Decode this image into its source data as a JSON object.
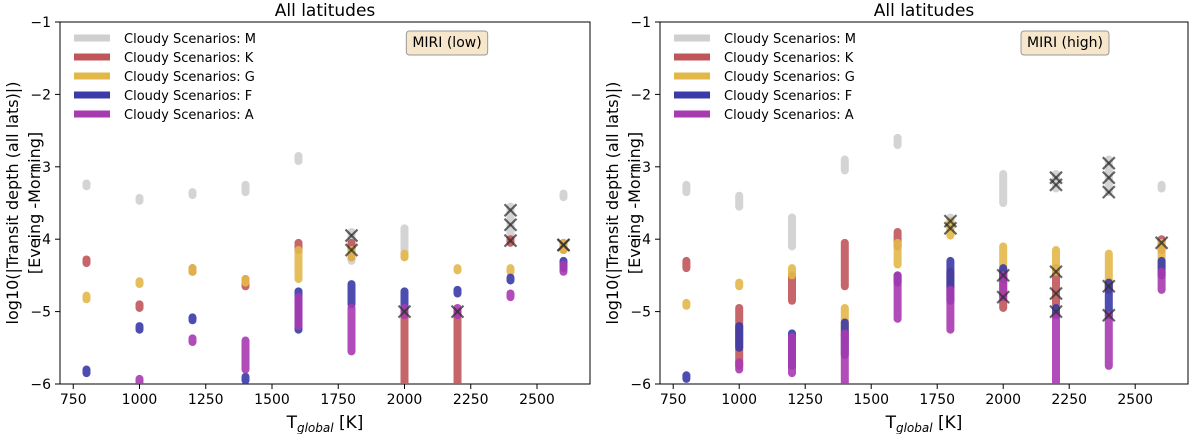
{
  "chart_data": [
    {
      "type": "scatter",
      "title": "All latitudes",
      "xlabel_main": "T",
      "xlabel_sub": "global",
      "xlabel_unit": " [K]",
      "ylabel_line1": "log10(|Transit depth (all lats)|)",
      "ylabel_line2": "[Eveing -Morning]",
      "xlim": [
        700,
        2700
      ],
      "ylim": [
        -6,
        -1
      ],
      "xticks": [
        750,
        1000,
        1250,
        1500,
        1750,
        2000,
        2250,
        2500
      ],
      "yticks": [
        -6,
        -5,
        -4,
        -3,
        -2,
        -1
      ],
      "annotation": "MIRI (low)",
      "legend": [
        "Cloudy Scenarios: M",
        "Cloudy Scenarios: K",
        "Cloudy Scenarios: G",
        "Cloudy Scenarios: F",
        "Cloudy Scenarios: A"
      ],
      "legend_colors": [
        "#cfcfcf",
        "#c0555a",
        "#e3b84a",
        "#3a3aa8",
        "#a83ab0"
      ],
      "series": [
        {
          "name": "M",
          "color": "#cfcfcf",
          "ranges": [
            [
              800,
              -3.27,
              -3.23
            ],
            [
              1000,
              -3.47,
              -3.43
            ],
            [
              1200,
              -3.39,
              -3.35
            ],
            [
              1400,
              -3.35,
              -3.25
            ],
            [
              1600,
              -2.92,
              -2.85
            ],
            [
              1800,
              -4.3,
              -3.9
            ],
            [
              2000,
              -4.25,
              -3.85
            ],
            [
              2400,
              -4.0,
              -3.55
            ],
            [
              2600,
              -3.42,
              -3.37
            ]
          ],
          "crosses": [
            [
              1800,
              -3.95
            ],
            [
              1800,
              -4.15
            ],
            [
              2400,
              -3.6
            ],
            [
              2400,
              -3.8
            ],
            [
              2600,
              -4.08
            ]
          ]
        },
        {
          "name": "K",
          "color": "#c0555a",
          "ranges": [
            [
              800,
              -4.33,
              -4.28
            ],
            [
              1000,
              -4.95,
              -4.9
            ],
            [
              1200,
              -4.45,
              -4.4
            ],
            [
              1400,
              -4.65,
              -4.55
            ],
            [
              1600,
              -4.15,
              -4.05
            ],
            [
              1800,
              -4.25,
              -4.05
            ],
            [
              2000,
              -6.0,
              -5.0
            ],
            [
              2200,
              -6.0,
              -5.0
            ],
            [
              2400,
              -4.05,
              -4.0
            ],
            [
              2600,
              -4.15,
              -4.05
            ]
          ],
          "crosses": [
            [
              2000,
              -5.0
            ],
            [
              2200,
              -5.0
            ],
            [
              2400,
              -4.02
            ],
            [
              2600,
              -4.08
            ]
          ]
        },
        {
          "name": "G",
          "color": "#e3b84a",
          "ranges": [
            [
              800,
              -4.83,
              -4.78
            ],
            [
              1000,
              -4.62,
              -4.58
            ],
            [
              1200,
              -4.45,
              -4.4
            ],
            [
              1400,
              -4.6,
              -4.55
            ],
            [
              1600,
              -4.55,
              -4.15
            ],
            [
              1800,
              -4.25,
              -4.15
            ],
            [
              2000,
              -4.25,
              -4.2
            ],
            [
              2200,
              -4.43,
              -4.4
            ],
            [
              2400,
              -4.45,
              -4.4
            ],
            [
              2600,
              -4.15,
              -4.05
            ]
          ],
          "crosses": []
        },
        {
          "name": "F",
          "color": "#3a3aa8",
          "ranges": [
            [
              800,
              -5.85,
              -5.8
            ],
            [
              1000,
              -5.25,
              -5.2
            ],
            [
              1200,
              -5.12,
              -5.08
            ],
            [
              1400,
              -5.95,
              -5.9
            ],
            [
              1600,
              -5.25,
              -4.72
            ],
            [
              1800,
              -4.9,
              -4.62
            ],
            [
              2000,
              -4.95,
              -4.72
            ],
            [
              2200,
              -4.75,
              -4.7
            ],
            [
              2400,
              -4.57,
              -4.53
            ],
            [
              2600,
              -4.4,
              -4.3
            ]
          ],
          "crosses": []
        },
        {
          "name": "A",
          "color": "#a83ab0",
          "ranges": [
            [
              1000,
              -5.97,
              -5.93
            ],
            [
              1200,
              -5.42,
              -5.37
            ],
            [
              1400,
              -5.8,
              -5.4
            ],
            [
              1600,
              -5.2,
              -4.8
            ],
            [
              1800,
              -5.55,
              -4.95
            ],
            [
              2000,
              -5.05,
              -4.95
            ],
            [
              2200,
              -5.05,
              -4.95
            ],
            [
              2400,
              -4.8,
              -4.75
            ],
            [
              2600,
              -4.45,
              -4.35
            ]
          ],
          "crosses": []
        }
      ]
    },
    {
      "type": "scatter",
      "title": "All latitudes",
      "xlabel_main": "T",
      "xlabel_sub": "global",
      "xlabel_unit": " [K]",
      "ylabel_line1": "log10(|Transit depth (all lats)|)",
      "ylabel_line2": "[Eveing -Morning]",
      "xlim": [
        700,
        2700
      ],
      "ylim": [
        -6,
        -1
      ],
      "xticks": [
        750,
        1000,
        1250,
        1500,
        1750,
        2000,
        2250,
        2500
      ],
      "yticks": [
        -6,
        -5,
        -4,
        -3,
        -2,
        -1
      ],
      "annotation": "MIRI (high)",
      "legend": [
        "Cloudy Scenarios: M",
        "Cloudy Scenarios: K",
        "Cloudy Scenarios: G",
        "Cloudy Scenarios: F",
        "Cloudy Scenarios: A"
      ],
      "legend_colors": [
        "#cfcfcf",
        "#c0555a",
        "#e3b84a",
        "#3a3aa8",
        "#a83ab0"
      ],
      "series": [
        {
          "name": "M",
          "color": "#cfcfcf",
          "ranges": [
            [
              800,
              -3.35,
              -3.25
            ],
            [
              1000,
              -3.55,
              -3.4
            ],
            [
              1200,
              -4.1,
              -3.7
            ],
            [
              1400,
              -3.05,
              -2.9
            ],
            [
              1600,
              -2.7,
              -2.6
            ],
            [
              1800,
              -3.85,
              -3.7
            ],
            [
              2000,
              -3.5,
              -3.1
            ],
            [
              2200,
              -3.3,
              -3.1
            ],
            [
              2400,
              -3.35,
              -2.9
            ],
            [
              2600,
              -3.3,
              -3.25
            ]
          ],
          "crosses": [
            [
              1800,
              -3.75
            ],
            [
              1800,
              -3.85
            ],
            [
              2200,
              -3.15
            ],
            [
              2200,
              -3.25
            ],
            [
              2400,
              -2.95
            ],
            [
              2400,
              -3.15
            ],
            [
              2400,
              -3.35
            ]
          ]
        },
        {
          "name": "K",
          "color": "#c0555a",
          "ranges": [
            [
              800,
              -4.4,
              -4.3
            ],
            [
              1000,
              -5.75,
              -4.95
            ],
            [
              1200,
              -4.85,
              -4.5
            ],
            [
              1400,
              -4.65,
              -4.05
            ],
            [
              1600,
              -4.1,
              -3.9
            ],
            [
              1800,
              -4.7,
              -4.45
            ],
            [
              2000,
              -4.95,
              -4.45
            ],
            [
              2200,
              -4.9,
              -4.4
            ],
            [
              2400,
              -4.7,
              -4.6
            ],
            [
              2600,
              -4.15,
              -4.0
            ]
          ],
          "crosses": [
            [
              2000,
              -4.5
            ],
            [
              2000,
              -4.8
            ],
            [
              2200,
              -4.45
            ],
            [
              2200,
              -4.75
            ],
            [
              2400,
              -4.65
            ],
            [
              2600,
              -4.05
            ]
          ]
        },
        {
          "name": "G",
          "color": "#e3b84a",
          "ranges": [
            [
              800,
              -4.92,
              -4.88
            ],
            [
              1000,
              -4.65,
              -4.6
            ],
            [
              1200,
              -4.5,
              -4.4
            ],
            [
              1400,
              -5.35,
              -4.95
            ],
            [
              1600,
              -4.35,
              -4.05
            ],
            [
              1800,
              -3.95,
              -3.75
            ],
            [
              2000,
              -4.45,
              -4.1
            ],
            [
              2200,
              -4.45,
              -4.15
            ],
            [
              2400,
              -4.6,
              -4.2
            ],
            [
              2600,
              -4.4,
              -4.05
            ]
          ],
          "crosses": []
        },
        {
          "name": "F",
          "color": "#3a3aa8",
          "ranges": [
            [
              800,
              -5.93,
              -5.88
            ],
            [
              1000,
              -5.5,
              -5.2
            ],
            [
              1200,
              -5.75,
              -5.3
            ],
            [
              1400,
              -5.6,
              -5.15
            ],
            [
              1600,
              -4.6,
              -4.5
            ],
            [
              1800,
              -4.85,
              -4.3
            ],
            [
              2000,
              -4.55,
              -4.4
            ],
            [
              2200,
              -5.05,
              -4.95
            ],
            [
              2400,
              -5.05,
              -4.6
            ],
            [
              2600,
              -4.5,
              -4.3
            ]
          ],
          "crosses": [
            [
              2200,
              -5.0
            ],
            [
              2400,
              -5.05
            ]
          ]
        },
        {
          "name": "A",
          "color": "#a83ab0",
          "ranges": [
            [
              1000,
              -5.8,
              -5.7
            ],
            [
              1200,
              -5.85,
              -5.35
            ],
            [
              1400,
              -6.0,
              -5.3
            ],
            [
              1600,
              -5.1,
              -4.5
            ],
            [
              1800,
              -5.25,
              -4.7
            ],
            [
              2000,
              -4.8,
              -4.5
            ],
            [
              2200,
              -6.0,
              -5.05
            ],
            [
              2400,
              -5.75,
              -5.05
            ],
            [
              2600,
              -4.7,
              -4.45
            ]
          ],
          "crosses": []
        }
      ]
    }
  ]
}
